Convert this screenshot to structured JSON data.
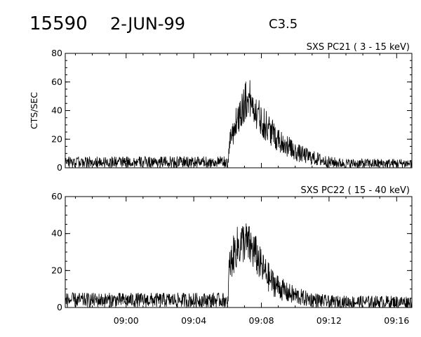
{
  "header": {
    "event_id": "15590",
    "date": "2-JUN-99",
    "goes_class": "C3.5"
  },
  "chart_data": [
    {
      "type": "line",
      "title": "SXS PC21  (  3 - 15 keV)",
      "ylabel": "CTS/SEC",
      "xlabel": "",
      "x_unit": "minutes after 09:00 UT (2-JUN-99)",
      "xlim": [
        -3.6,
        16.9
      ],
      "ylim": [
        0,
        80
      ],
      "yticks": [
        0,
        20,
        40,
        60,
        80
      ],
      "xtick_labels": [
        "09:00",
        "09:04",
        "09:08",
        "09:12",
        "09:16"
      ],
      "xtick_values": [
        0,
        4,
        8,
        12,
        16
      ],
      "grid": false,
      "series_profile": [
        {
          "x": -3.6,
          "y": 4
        },
        {
          "x": 5.9,
          "y": 4
        },
        {
          "x": 6.0,
          "y": 0
        },
        {
          "x": 6.1,
          "y": 18
        },
        {
          "x": 6.6,
          "y": 35
        },
        {
          "x": 7.0,
          "y": 45
        },
        {
          "x": 7.2,
          "y": 50
        },
        {
          "x": 7.6,
          "y": 42
        },
        {
          "x": 8.0,
          "y": 33
        },
        {
          "x": 9.0,
          "y": 20
        },
        {
          "x": 10.0,
          "y": 11
        },
        {
          "x": 11.0,
          "y": 7
        },
        {
          "x": 12.0,
          "y": 4
        },
        {
          "x": 13.0,
          "y": 3
        },
        {
          "x": 16.9,
          "y": 3
        }
      ]
    },
    {
      "type": "line",
      "title": "SXS PC22  ( 15 - 40 keV)",
      "ylabel": "",
      "xlabel": "",
      "x_unit": "minutes after 09:00 UT (2-JUN-99)",
      "xlim": [
        -3.6,
        16.9
      ],
      "ylim": [
        0,
        60
      ],
      "yticks": [
        0,
        20,
        40,
        60
      ],
      "xtick_labels": [
        "09:00",
        "09:04",
        "09:08",
        "09:12",
        "09:16"
      ],
      "xtick_values": [
        0,
        4,
        8,
        12,
        16
      ],
      "grid": false,
      "series_profile": [
        {
          "x": -3.6,
          "y": 4
        },
        {
          "x": 5.9,
          "y": 4
        },
        {
          "x": 6.0,
          "y": 0
        },
        {
          "x": 6.1,
          "y": 22
        },
        {
          "x": 6.5,
          "y": 32
        },
        {
          "x": 7.0,
          "y": 36
        },
        {
          "x": 7.6,
          "y": 30
        },
        {
          "x": 8.0,
          "y": 22
        },
        {
          "x": 8.6,
          "y": 14
        },
        {
          "x": 9.5,
          "y": 8
        },
        {
          "x": 10.5,
          "y": 5
        },
        {
          "x": 12.0,
          "y": 3
        },
        {
          "x": 16.9,
          "y": 3
        }
      ]
    }
  ]
}
